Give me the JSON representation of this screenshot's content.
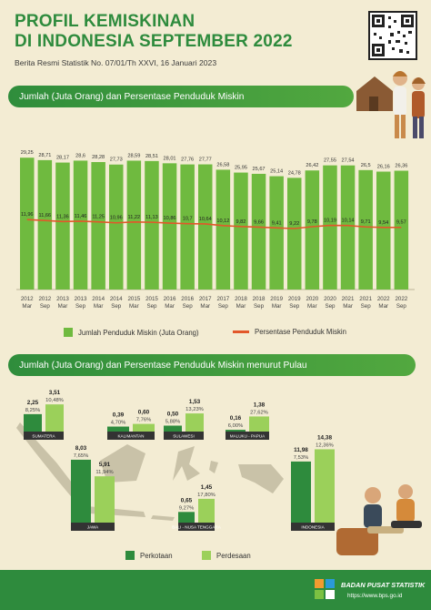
{
  "header": {
    "title_line1": "PROFIL KEMISKINAN",
    "title_line2": "DI INDONESIA SEPTEMBER  2022",
    "subtitle": "Berita Resmi Statistik No. 07/01/Th XXVI, 16 Januari 2023"
  },
  "colors": {
    "green": "#6fba3f",
    "dark_green": "#2e8b3d",
    "light_green": "#9bd05a",
    "orange": "#e2572a",
    "background": "#f3ecd3"
  },
  "section1": {
    "title": "Jumlah (Juta Orang) dan Persentase Penduduk Miskin"
  },
  "section2": {
    "title": "Jumlah (Juta Orang) dan Persentase Penduduk Miskin menurut Pulau"
  },
  "footer": {
    "org": "BADAN PUSAT STATISTIK",
    "url": "https://www.bps.go.id"
  },
  "chart_data": [
    {
      "type": "bar",
      "categories": [
        [
          "2012",
          "Mar"
        ],
        [
          "2012",
          "Sep"
        ],
        [
          "2013",
          "Mar"
        ],
        [
          "2013",
          "Sep"
        ],
        [
          "2014",
          "Mar"
        ],
        [
          "2014",
          "Sep"
        ],
        [
          "2015",
          "Mar"
        ],
        [
          "2015",
          "Sep"
        ],
        [
          "2016",
          "Mar"
        ],
        [
          "2016",
          "Sep"
        ],
        [
          "2017",
          "Mar"
        ],
        [
          "2017",
          "Sep"
        ],
        [
          "2018",
          "Mar"
        ],
        [
          "2018",
          "Sep"
        ],
        [
          "2019",
          "Mar"
        ],
        [
          "2019",
          "Sep"
        ],
        [
          "2020",
          "Mar"
        ],
        [
          "2020",
          "Sep"
        ],
        [
          "2021",
          "Mar"
        ],
        [
          "2021",
          "Sep"
        ],
        [
          "2022",
          "Mar"
        ],
        [
          "2022",
          "Sep"
        ]
      ],
      "series": [
        {
          "name": "Jumlah Penduduk Miskin (Juta Orang)",
          "type": "bar",
          "values": [
            29.25,
            28.71,
            28.17,
            28.6,
            28.28,
            27.73,
            28.59,
            28.51,
            28.01,
            27.76,
            27.77,
            26.58,
            25.95,
            25.67,
            25.14,
            24.78,
            26.42,
            27.55,
            27.54,
            26.5,
            26.16,
            26.36
          ],
          "labels": [
            "29,25",
            "28,71",
            "28,17",
            "28,6",
            "28,28",
            "27,73",
            "28,59",
            "28,51",
            "28,01",
            "27,76",
            "27,77",
            "26,58",
            "25,95",
            "25,67",
            "25,14",
            "24,78",
            "26,42",
            "27,55",
            "27,54",
            "26,5",
            "26,16",
            "26,36"
          ]
        },
        {
          "name": "Persentase Penduduk Miskin",
          "type": "line",
          "values": [
            11.96,
            11.66,
            11.36,
            11.46,
            11.25,
            10.96,
            11.22,
            11.13,
            10.86,
            10.7,
            10.64,
            10.12,
            9.82,
            9.66,
            9.41,
            9.22,
            9.78,
            10.19,
            10.14,
            9.71,
            9.54,
            9.57
          ],
          "labels": [
            "11,96",
            "11,66",
            "11,36",
            "11,46",
            "11,25",
            "10,96",
            "11,22",
            "11,13",
            "10,86",
            "10,7",
            "10,64",
            "10,12",
            "9,82",
            "9,66",
            "9,41",
            "9,22",
            "9,78",
            "10,19",
            "10,14",
            "9,71",
            "9,54",
            "9,57"
          ]
        }
      ]
    },
    {
      "type": "bar",
      "series": [
        {
          "name": "Perkotaan",
          "color": "#2e8b3d"
        },
        {
          "name": "Perdesaan",
          "color": "#9bd05a"
        }
      ],
      "regions": [
        {
          "name": "SUMATERA",
          "perkotaan": 2.25,
          "perkotaan_label": "2,25",
          "perkotaan_pct": "8,25%",
          "perdesaan": 3.51,
          "perdesaan_label": "3,51",
          "perdesaan_pct": "10,48%"
        },
        {
          "name": "KALIMANTAN",
          "perkotaan": 0.39,
          "perkotaan_label": "0,39",
          "perkotaan_pct": "4,70%",
          "perdesaan": 0.6,
          "perdesaan_label": "0,60",
          "perdesaan_pct": "7,76%"
        },
        {
          "name": "SULAWESI",
          "perkotaan": 0.5,
          "perkotaan_label": "0,50",
          "perkotaan_pct": "5,88%",
          "perdesaan": 1.53,
          "perdesaan_label": "1,53",
          "perdesaan_pct": "13,23%"
        },
        {
          "name": "MALUKU - PAPUA",
          "perkotaan": 0.16,
          "perkotaan_label": "0,16",
          "perkotaan_pct": "6,00%",
          "perdesaan": 1.38,
          "perdesaan_label": "1,38",
          "perdesaan_pct": "27,62%"
        },
        {
          "name": "JAWA",
          "perkotaan": 8.03,
          "perkotaan_label": "8,03",
          "perkotaan_pct": "7,65%",
          "perdesaan": 5.91,
          "perdesaan_label": "5,91",
          "perdesaan_pct": "11,94%"
        },
        {
          "name": "BALI - NUSA TENGGARA",
          "perkotaan": 0.65,
          "perkotaan_label": "0,65",
          "perkotaan_pct": "9,27%",
          "perdesaan": 1.45,
          "perdesaan_label": "1,45",
          "perdesaan_pct": "17,80%"
        },
        {
          "name": "INDONESIA",
          "perkotaan": 11.98,
          "perkotaan_label": "11,98",
          "perkotaan_pct": "7,53%",
          "perdesaan": 14.38,
          "perdesaan_label": "14,38",
          "perdesaan_pct": "12,36%"
        }
      ]
    }
  ]
}
